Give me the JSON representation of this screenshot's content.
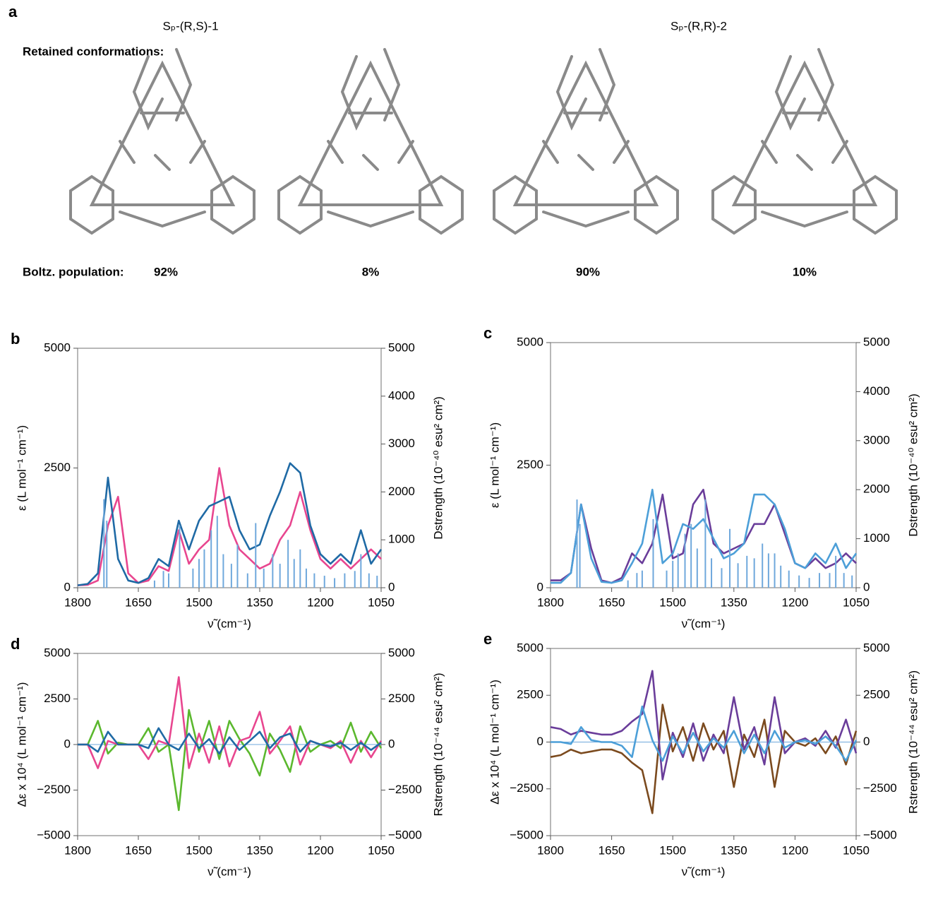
{
  "panel_a": {
    "label": "a",
    "titles": [
      "Sₚ-(R,S)-1",
      "Sₚ-(R,R)-2"
    ],
    "retained": "Retained conformations:",
    "population_label": "Boltz. population:",
    "populations": [
      "92%",
      "8%",
      "90%",
      "10%"
    ]
  },
  "chart_data": [
    {
      "type": "line",
      "panel": "b",
      "xlabel": "ν̃ (cm⁻¹)",
      "ylabel": "ε (L mol⁻¹ cm⁻¹)",
      "y2label": "Dstrength (10⁻⁴⁰ esu² cm²)",
      "xlim": [
        1800,
        1050
      ],
      "xticks": [
        1800,
        1650,
        1500,
        1350,
        1200,
        1050
      ],
      "ylim": [
        0,
        5000
      ],
      "yticks": [
        0,
        2500,
        5000
      ],
      "y2lim": [
        0,
        5000
      ],
      "y2ticks": [
        0,
        1000,
        2000,
        3000,
        4000,
        5000
      ],
      "x": [
        1800,
        1775,
        1750,
        1725,
        1700,
        1675,
        1650,
        1625,
        1600,
        1575,
        1550,
        1525,
        1500,
        1475,
        1450,
        1425,
        1400,
        1375,
        1350,
        1325,
        1300,
        1275,
        1250,
        1225,
        1200,
        1175,
        1150,
        1125,
        1100,
        1075,
        1050
      ],
      "series": [
        {
          "color": "#e8468f",
          "values": [
            50,
            60,
            150,
            1300,
            1900,
            300,
            100,
            150,
            450,
            350,
            1200,
            500,
            800,
            1000,
            2500,
            1300,
            800,
            600,
            400,
            500,
            1000,
            1300,
            2000,
            1200,
            600,
            400,
            600,
            400,
            600,
            800,
            600
          ]
        },
        {
          "color": "#1f6aa5",
          "values": [
            50,
            80,
            300,
            2300,
            600,
            150,
            100,
            200,
            600,
            450,
            1400,
            800,
            1400,
            1700,
            1800,
            1900,
            1200,
            800,
            900,
            1500,
            2000,
            2600,
            2400,
            1300,
            700,
            500,
            700,
            500,
            1200,
            500,
            800
          ]
        },
        {
          "type": "stick",
          "axis": "y2",
          "color": "#6fa8dc",
          "x": [
            1735,
            1728,
            1610,
            1588,
            1575,
            1548,
            1515,
            1500,
            1487,
            1470,
            1455,
            1440,
            1420,
            1405,
            1380,
            1360,
            1340,
            1318,
            1300,
            1280,
            1265,
            1250,
            1235,
            1215,
            1190,
            1165,
            1140,
            1115,
            1100,
            1080,
            1060
          ],
          "values": [
            1850,
            1400,
            150,
            350,
            300,
            1300,
            400,
            600,
            800,
            1200,
            1500,
            700,
            500,
            900,
            300,
            1350,
            400,
            700,
            500,
            1000,
            600,
            800,
            400,
            300,
            250,
            200,
            300,
            350,
            700,
            300,
            250
          ]
        }
      ]
    },
    {
      "type": "line",
      "panel": "c",
      "xlabel": "ν̃ (cm⁻¹)",
      "ylabel": "ε (L mol⁻¹ cm⁻¹)",
      "y2label": "Dstrength (10⁻⁴⁰ esu² cm²)",
      "xlim": [
        1800,
        1050
      ],
      "xticks": [
        1800,
        1650,
        1500,
        1350,
        1200,
        1050
      ],
      "ylim": [
        0,
        5000
      ],
      "yticks": [
        0,
        2500,
        5000
      ],
      "y2lim": [
        0,
        5000
      ],
      "y2ticks": [
        0,
        1000,
        2000,
        3000,
        4000,
        5000
      ],
      "x": [
        1800,
        1775,
        1750,
        1725,
        1700,
        1675,
        1650,
        1625,
        1600,
        1575,
        1550,
        1525,
        1500,
        1475,
        1450,
        1425,
        1400,
        1375,
        1350,
        1325,
        1300,
        1275,
        1250,
        1225,
        1200,
        1175,
        1150,
        1125,
        1100,
        1075,
        1050
      ],
      "series": [
        {
          "color": "#6a3d9a",
          "values": [
            150,
            150,
            300,
            1700,
            800,
            150,
            100,
            200,
            700,
            500,
            900,
            1900,
            600,
            700,
            1700,
            2000,
            900,
            700,
            800,
            900,
            1300,
            1300,
            1700,
            1100,
            500,
            400,
            600,
            400,
            500,
            700,
            500
          ]
        },
        {
          "color": "#4c9fd8",
          "values": [
            100,
            100,
            300,
            1700,
            600,
            120,
            100,
            150,
            500,
            900,
            2000,
            500,
            700,
            1300,
            1200,
            1400,
            1000,
            600,
            700,
            900,
            1900,
            1900,
            1700,
            1200,
            500,
            400,
            700,
            500,
            900,
            400,
            700
          ]
        },
        {
          "type": "stick",
          "axis": "y2",
          "color": "#6fa8dc",
          "x": [
            1735,
            1728,
            1610,
            1588,
            1575,
            1548,
            1515,
            1500,
            1487,
            1470,
            1455,
            1440,
            1420,
            1405,
            1380,
            1360,
            1340,
            1318,
            1300,
            1280,
            1265,
            1250,
            1235,
            1215,
            1190,
            1165,
            1140,
            1115,
            1100,
            1080,
            1060
          ],
          "values": [
            1800,
            1300,
            150,
            300,
            350,
            1400,
            350,
            550,
            700,
            1100,
            1300,
            800,
            1800,
            600,
            400,
            1200,
            500,
            650,
            600,
            900,
            700,
            700,
            450,
            350,
            250,
            200,
            300,
            300,
            650,
            300,
            250
          ]
        }
      ]
    },
    {
      "type": "line",
      "panel": "d",
      "xlabel": "ν̃ (cm⁻¹)",
      "ylabel": "Δε x 10⁴ (L mol⁻¹ cm⁻¹)",
      "y2label": "Rstrength (10⁻⁴⁴ esu² cm²)",
      "xlim": [
        1800,
        1050
      ],
      "xticks": [
        1800,
        1650,
        1500,
        1350,
        1200,
        1050
      ],
      "ylim": [
        -5000,
        5000
      ],
      "yticks": [
        {
          "value": -5000,
          "label": "−5000"
        },
        {
          "value": -2500,
          "label": "−2500"
        },
        0,
        2500,
        5000
      ],
      "y2lim": [
        -5000,
        5000
      ],
      "y2ticks": [
        {
          "value": -5000,
          "label": "−5000"
        },
        {
          "value": -2500,
          "label": "−2500"
        },
        0,
        2500,
        5000
      ],
      "x": [
        1800,
        1775,
        1750,
        1725,
        1700,
        1675,
        1650,
        1625,
        1600,
        1575,
        1550,
        1525,
        1500,
        1475,
        1450,
        1425,
        1400,
        1375,
        1350,
        1325,
        1300,
        1275,
        1250,
        1225,
        1200,
        1175,
        1150,
        1125,
        1100,
        1075,
        1050
      ],
      "series": [
        {
          "color": "#5bb82e",
          "values": [
            0,
            0,
            1300,
            -500,
            100,
            0,
            0,
            900,
            -400,
            0,
            -3600,
            1900,
            -400,
            1300,
            -800,
            1300,
            300,
            -500,
            -1700,
            600,
            -300,
            -1500,
            1000,
            -400,
            0,
            200,
            -200,
            1200,
            -400,
            700,
            -200
          ]
        },
        {
          "color": "#e8468f",
          "values": [
            0,
            0,
            -1300,
            200,
            0,
            0,
            0,
            -800,
            200,
            0,
            3700,
            -1300,
            600,
            -1000,
            1000,
            -1200,
            200,
            400,
            1800,
            -500,
            200,
            1000,
            -1100,
            200,
            0,
            -200,
            200,
            -1000,
            200,
            -700,
            200
          ]
        },
        {
          "color": "#1f6aa5",
          "values": [
            0,
            0,
            -400,
            700,
            0,
            0,
            0,
            -200,
            900,
            0,
            -300,
            600,
            -200,
            300,
            -500,
            400,
            -300,
            200,
            700,
            -200,
            400,
            600,
            -400,
            200,
            0,
            -100,
            100,
            -300,
            100,
            -300,
            100
          ]
        }
      ]
    },
    {
      "type": "line",
      "panel": "e",
      "xlabel": "ν̃ (cm⁻¹)",
      "ylabel": "Δε x 10⁴ (L mol⁻¹ cm⁻¹)",
      "y2label": "Rstrength (10⁻⁴⁴ esu² cm²)",
      "xlim": [
        1800,
        1050
      ],
      "xticks": [
        1800,
        1650,
        1500,
        1350,
        1200,
        1050
      ],
      "ylim": [
        -5000,
        5000
      ],
      "yticks": [
        {
          "value": -5000,
          "label": "−5000"
        },
        {
          "value": -2500,
          "label": "−2500"
        },
        0,
        2500,
        5000
      ],
      "y2lim": [
        -5000,
        5000
      ],
      "y2ticks": [
        {
          "value": -5000,
          "label": "−5000"
        },
        {
          "value": -2500,
          "label": "−2500"
        },
        0,
        2500,
        5000
      ],
      "x": [
        1800,
        1775,
        1750,
        1725,
        1700,
        1675,
        1650,
        1625,
        1600,
        1575,
        1550,
        1525,
        1500,
        1475,
        1450,
        1425,
        1400,
        1375,
        1350,
        1325,
        1300,
        1275,
        1250,
        1225,
        1200,
        1175,
        1150,
        1125,
        1100,
        1075,
        1050
      ],
      "series": [
        {
          "color": "#7b4a1e",
          "values": [
            -800,
            -700,
            -400,
            -600,
            -500,
            -400,
            -400,
            -600,
            -1100,
            -1500,
            -3800,
            2000,
            -500,
            800,
            -1000,
            1000,
            -400,
            600,
            -2400,
            400,
            -800,
            1200,
            -2400,
            600,
            0,
            -200,
            200,
            -600,
            300,
            -1200,
            600
          ]
        },
        {
          "color": "#6a3d9a",
          "values": [
            800,
            700,
            400,
            600,
            500,
            400,
            400,
            600,
            1100,
            1500,
            3800,
            -2000,
            500,
            -800,
            1000,
            -1000,
            400,
            -600,
            2400,
            -400,
            800,
            -1200,
            2400,
            -600,
            0,
            200,
            -200,
            600,
            -300,
            1200,
            -600
          ]
        },
        {
          "color": "#4c9fd8",
          "values": [
            0,
            0,
            -100,
            800,
            100,
            0,
            0,
            -200,
            -800,
            1900,
            100,
            -1000,
            300,
            -600,
            500,
            -500,
            200,
            -300,
            600,
            -600,
            400,
            -600,
            600,
            -300,
            0,
            100,
            -100,
            300,
            -200,
            -1000,
            100
          ]
        }
      ]
    }
  ]
}
